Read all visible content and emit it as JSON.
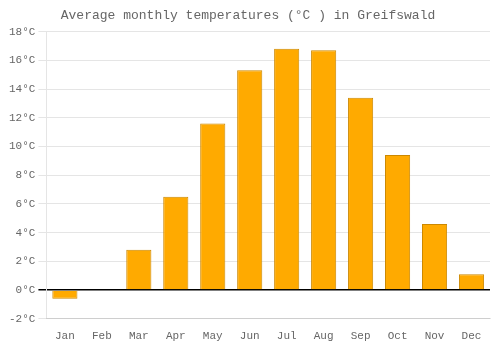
{
  "chart_data": {
    "type": "bar",
    "title": "Average monthly temperatures (°C ) in Greifswald",
    "categories": [
      "Jan",
      "Feb",
      "Mar",
      "Apr",
      "May",
      "Jun",
      "Jul",
      "Aug",
      "Sep",
      "Oct",
      "Nov",
      "Dec"
    ],
    "values": [
      -0.6,
      0.0,
      2.8,
      6.5,
      11.6,
      15.3,
      16.8,
      16.7,
      13.4,
      9.4,
      4.6,
      1.1
    ],
    "color": "#FFAA00",
    "ylim": [
      -2,
      18
    ],
    "yticks": [
      {
        "value": -2,
        "label": "-2°C"
      },
      {
        "value": 0,
        "label": "0°C"
      },
      {
        "value": 2,
        "label": "2°C"
      },
      {
        "value": 4,
        "label": "4°C"
      },
      {
        "value": 6,
        "label": "6°C"
      },
      {
        "value": 8,
        "label": "8°C"
      },
      {
        "value": 10,
        "label": "10°C"
      },
      {
        "value": 12,
        "label": "12°C"
      },
      {
        "value": 14,
        "label": "14°C"
      },
      {
        "value": 16,
        "label": "16°C"
      },
      {
        "value": 18,
        "label": "18°C"
      }
    ],
    "grid": true
  }
}
